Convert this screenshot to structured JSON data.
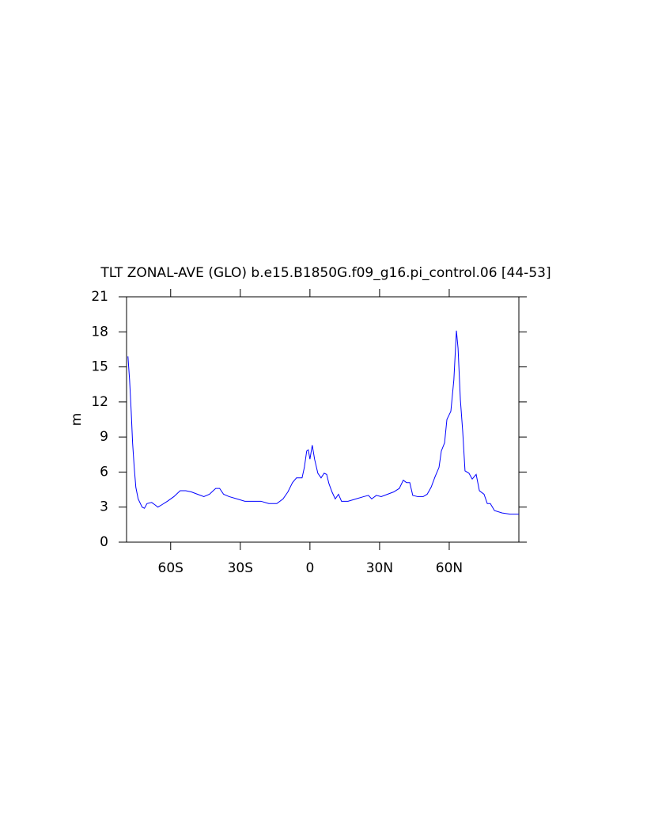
{
  "chart_data": {
    "type": "line",
    "title": "TLT ZONAL-AVE (GLO) b.e15.B1850G.f09_g16.pi_control.06 [44-53]",
    "y_label": "m",
    "x": [
      -78.4,
      -77.7,
      -77.0,
      -76.4,
      -75.7,
      -75.0,
      -74.0,
      -72.3,
      -71.3,
      -70.2,
      -68.2,
      -66.8,
      -65.5,
      -63.8,
      -61.4,
      -58.6,
      -55.9,
      -53.5,
      -51.1,
      -48.4,
      -45.7,
      -43.3,
      -40.6,
      -38.9,
      -37.2,
      -34.8,
      -31.4,
      -28.0,
      -24.5,
      -21.1,
      -17.7,
      -14.3,
      -11.6,
      -9.5,
      -7.5,
      -5.8,
      -3.4,
      -2.4,
      -1.4,
      -0.7,
      0,
      1.0,
      2.0,
      3.4,
      4.8,
      6.1,
      7.2,
      8.2,
      9.5,
      10.9,
      12.3,
      13.6,
      16.4,
      19.8,
      23.2,
      25.2,
      26.6,
      28.6,
      30.7,
      33.4,
      36.1,
      38.5,
      40.2,
      41.6,
      43.0,
      44.3,
      46.4,
      48.8,
      50.5,
      52.2,
      53.9,
      55.6,
      56.6,
      58.0,
      59.0,
      60.7,
      62.0,
      63.1,
      63.8,
      64.8,
      65.8,
      66.8,
      68.5,
      69.9,
      71.6,
      73.0,
      75.0,
      76.4,
      77.7,
      79.5,
      82.8,
      86.2,
      90.0
    ],
    "series": [
      {
        "color": "#0000ff",
        "values": [
          15.9,
          13.9,
          11.2,
          8.5,
          6.4,
          4.7,
          3.7,
          3.0,
          2.9,
          3.3,
          3.4,
          3.2,
          3.0,
          3.2,
          3.5,
          3.9,
          4.4,
          4.4,
          4.3,
          4.1,
          3.9,
          4.1,
          4.6,
          4.6,
          4.1,
          3.9,
          3.7,
          3.5,
          3.5,
          3.5,
          3.3,
          3.3,
          3.7,
          4.3,
          5.1,
          5.5,
          5.5,
          6.4,
          7.8,
          7.9,
          7.1,
          8.3,
          7.1,
          5.9,
          5.5,
          5.9,
          5.8,
          5.0,
          4.3,
          3.7,
          4.1,
          3.5,
          3.5,
          3.7,
          3.9,
          4.0,
          3.7,
          4.0,
          3.9,
          4.1,
          4.3,
          4.6,
          5.3,
          5.1,
          5.1,
          4.0,
          3.9,
          3.9,
          4.1,
          4.7,
          5.6,
          6.4,
          7.8,
          8.5,
          10.5,
          11.2,
          13.9,
          18.1,
          16.6,
          12.2,
          9.5,
          6.1,
          5.9,
          5.4,
          5.8,
          4.4,
          4.1,
          3.3,
          3.3,
          2.7,
          2.5,
          2.4,
          2.4
        ]
      }
    ],
    "xlim": [
      -79,
      90
    ],
    "xticks": [
      {
        "value": -60,
        "label": "60S"
      },
      {
        "value": -30,
        "label": "30S"
      },
      0,
      {
        "value": 30,
        "label": "30N"
      },
      {
        "value": 60,
        "label": "60N"
      }
    ],
    "ylim": [
      0,
      21
    ],
    "yticks": [
      0,
      3,
      6,
      9,
      12,
      15,
      18,
      21
    ]
  }
}
